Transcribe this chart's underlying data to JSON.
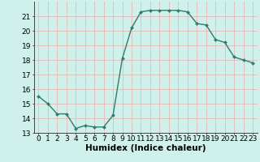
{
  "x": [
    0,
    1,
    2,
    3,
    4,
    5,
    6,
    7,
    8,
    9,
    10,
    11,
    12,
    13,
    14,
    15,
    16,
    17,
    18,
    19,
    20,
    21,
    22,
    23
  ],
  "y": [
    15.5,
    15.0,
    14.3,
    14.3,
    13.3,
    13.5,
    13.4,
    13.4,
    14.2,
    18.1,
    20.2,
    21.3,
    21.4,
    21.4,
    21.4,
    21.4,
    21.3,
    20.5,
    20.4,
    19.4,
    19.2,
    18.2,
    18.0,
    17.8
  ],
  "line_color": "#2e7d6e",
  "marker": "D",
  "marker_size": 2.0,
  "bg_color": "#cff0eb",
  "grid_color": "#e8b0b0",
  "xlabel": "Humidex (Indice chaleur)",
  "xlim": [
    -0.5,
    23.5
  ],
  "ylim": [
    13,
    22
  ],
  "yticks": [
    13,
    14,
    15,
    16,
    17,
    18,
    19,
    20,
    21
  ],
  "xticks": [
    0,
    1,
    2,
    3,
    4,
    5,
    6,
    7,
    8,
    9,
    10,
    11,
    12,
    13,
    14,
    15,
    16,
    17,
    18,
    19,
    20,
    21,
    22,
    23
  ],
  "xlabel_fontsize": 7.5,
  "tick_fontsize": 6.5,
  "line_width": 1.0
}
